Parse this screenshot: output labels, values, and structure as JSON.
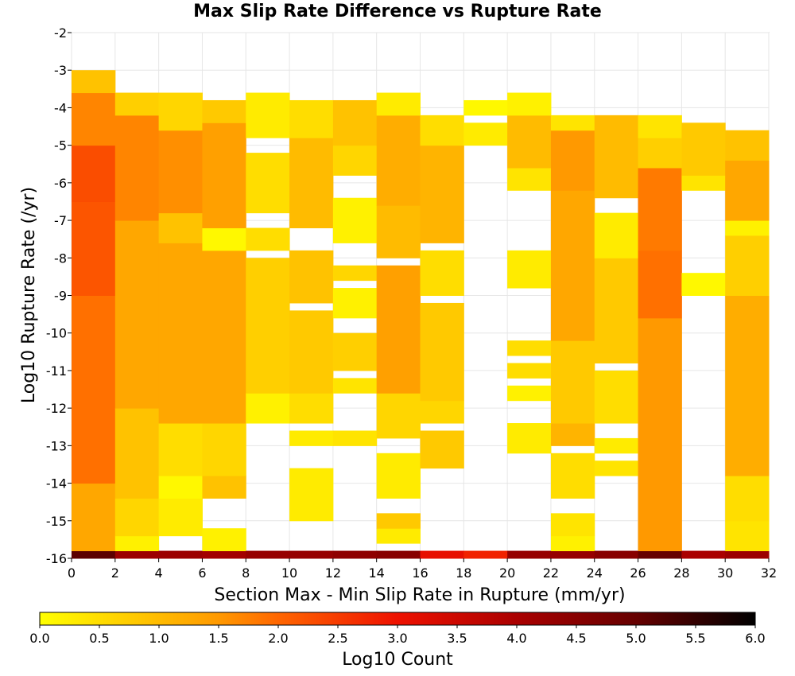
{
  "chart_data": {
    "type": "heatmap",
    "title": "Max Slip Rate Difference vs Rupture Rate",
    "xlabel": "Section Max - Min Slip Rate in Rupture (mm/yr)",
    "ylabel": "Log10 Rupture Rate (/yr)",
    "xlim": [
      0,
      32
    ],
    "ylim": [
      -16,
      -2
    ],
    "x_ticks": [
      "0",
      "2",
      "4",
      "6",
      "8",
      "10",
      "12",
      "14",
      "16",
      "18",
      "20",
      "22",
      "24",
      "26",
      "28",
      "30",
      "32"
    ],
    "y_ticks": [
      "-2",
      "-3",
      "-4",
      "-5",
      "-6",
      "-7",
      "-8",
      "-9",
      "-10",
      "-11",
      "-12",
      "-13",
      "-14",
      "-15",
      "-16"
    ],
    "x_bin_width": 2,
    "y_bin_width": 0.2,
    "grid": true,
    "colorbar": {
      "label": "Log10 Count",
      "min": 0.0,
      "max": 6.0,
      "ticks": [
        "0.0",
        "0.5",
        "1.0",
        "1.5",
        "2.0",
        "2.5",
        "3.0",
        "3.5",
        "4.0",
        "4.5",
        "5.0",
        "5.5",
        "6.0"
      ],
      "stops": [
        {
          "v": 0.0,
          "color": "#ffff00"
        },
        {
          "v": 0.5,
          "color": "#ffdd00"
        },
        {
          "v": 1.0,
          "color": "#ffbb00"
        },
        {
          "v": 1.5,
          "color": "#ff9900"
        },
        {
          "v": 2.0,
          "color": "#ff6600"
        },
        {
          "v": 3.0,
          "color": "#ee1100"
        },
        {
          "v": 4.0,
          "color": "#aa0000"
        },
        {
          "v": 5.0,
          "color": "#660000"
        },
        {
          "v": 6.0,
          "color": "#000000"
        }
      ]
    },
    "columns": [
      {
        "x": 1,
        "segments": [
          [
            -16.0,
            -15.8,
            5.1
          ],
          [
            -15.8,
            -14.0,
            1.3
          ],
          [
            -14.0,
            -9.0,
            1.9
          ],
          [
            -9.0,
            -6.5,
            2.2
          ],
          [
            -6.5,
            -5.0,
            2.3
          ],
          [
            -5.0,
            -3.6,
            1.7
          ],
          [
            -3.6,
            -3.0,
            0.9
          ]
        ]
      },
      {
        "x": 3,
        "segments": [
          [
            -16.0,
            -15.8,
            4.2
          ],
          [
            -15.8,
            -15.4,
            0.2
          ],
          [
            -15.4,
            -14.4,
            0.6
          ],
          [
            -14.4,
            -12.0,
            0.9
          ],
          [
            -12.0,
            -7.0,
            1.3
          ],
          [
            -7.0,
            -4.2,
            1.7
          ],
          [
            -4.2,
            -3.6,
            0.7
          ]
        ]
      },
      {
        "x": 5,
        "segments": [
          [
            -16.0,
            -15.8,
            4.2
          ],
          [
            -15.4,
            -14.4,
            0.3
          ],
          [
            -14.4,
            -13.8,
            0.1
          ],
          [
            -13.8,
            -12.4,
            0.5
          ],
          [
            -12.4,
            -7.6,
            1.3
          ],
          [
            -7.6,
            -6.8,
            0.9
          ],
          [
            -6.8,
            -4.6,
            1.6
          ],
          [
            -4.6,
            -3.6,
            0.6
          ]
        ]
      },
      {
        "x": 7,
        "segments": [
          [
            -16.0,
            -15.8,
            4.1
          ],
          [
            -15.8,
            -15.2,
            0.2
          ],
          [
            -14.4,
            -13.8,
            0.9
          ],
          [
            -13.8,
            -12.4,
            0.6
          ],
          [
            -12.4,
            -7.8,
            1.3
          ],
          [
            -7.8,
            -7.2,
            0.1
          ],
          [
            -7.2,
            -4.4,
            1.4
          ],
          [
            -4.4,
            -3.8,
            0.8
          ]
        ]
      },
      {
        "x": 9,
        "segments": [
          [
            -16.0,
            -15.8,
            4.3
          ],
          [
            -12.4,
            -11.6,
            0.2
          ],
          [
            -11.6,
            -8.0,
            0.7
          ],
          [
            -7.8,
            -7.2,
            0.5
          ],
          [
            -6.8,
            -5.2,
            0.5
          ],
          [
            -4.8,
            -3.6,
            0.3
          ]
        ]
      },
      {
        "x": 11,
        "segments": [
          [
            -16.0,
            -15.8,
            4.3
          ],
          [
            -15.0,
            -13.6,
            0.3
          ],
          [
            -13.0,
            -12.6,
            0.3
          ],
          [
            -12.4,
            -11.6,
            0.5
          ],
          [
            -11.6,
            -9.4,
            0.8
          ],
          [
            -9.2,
            -7.8,
            0.9
          ],
          [
            -7.2,
            -4.8,
            1.0
          ],
          [
            -4.8,
            -3.8,
            0.5
          ]
        ]
      },
      {
        "x": 13,
        "segments": [
          [
            -16.0,
            -15.8,
            4.4
          ],
          [
            -13.0,
            -12.6,
            0.4
          ],
          [
            -11.6,
            -11.2,
            0.4
          ],
          [
            -11.0,
            -10.0,
            0.7
          ],
          [
            -9.6,
            -8.8,
            0.2
          ],
          [
            -8.6,
            -8.2,
            0.6
          ],
          [
            -7.6,
            -6.4,
            0.2
          ],
          [
            -5.8,
            -5.0,
            0.6
          ],
          [
            -5.0,
            -3.8,
            0.9
          ]
        ]
      },
      {
        "x": 15,
        "segments": [
          [
            -16.0,
            -15.8,
            4.5
          ],
          [
            -15.6,
            -15.2,
            0.3
          ],
          [
            -15.2,
            -14.8,
            0.8
          ],
          [
            -14.4,
            -13.2,
            0.3
          ],
          [
            -12.8,
            -11.6,
            0.6
          ],
          [
            -11.6,
            -8.2,
            1.4
          ],
          [
            -8.0,
            -6.6,
            1.0
          ],
          [
            -6.6,
            -4.2,
            1.2
          ],
          [
            -4.2,
            -3.6,
            0.3
          ]
        ]
      },
      {
        "x": 17,
        "segments": [
          [
            -16.0,
            -15.8,
            3.1
          ],
          [
            -13.6,
            -12.6,
            0.8
          ],
          [
            -12.4,
            -11.8,
            0.6
          ],
          [
            -11.8,
            -9.2,
            0.8
          ],
          [
            -9.0,
            -7.8,
            0.5
          ],
          [
            -7.6,
            -5.0,
            1.1
          ],
          [
            -5.0,
            -4.2,
            0.5
          ]
        ]
      },
      {
        "x": 19,
        "segments": [
          [
            -16.0,
            -15.8,
            2.8
          ],
          [
            -5.0,
            -4.4,
            0.3
          ],
          [
            -4.2,
            -3.8,
            0.1
          ]
        ]
      },
      {
        "x": 21,
        "segments": [
          [
            -16.0,
            -15.8,
            4.3
          ],
          [
            -13.2,
            -12.4,
            0.3
          ],
          [
            -11.8,
            -11.4,
            0.2
          ],
          [
            -11.2,
            -10.8,
            0.5
          ],
          [
            -10.6,
            -10.2,
            0.5
          ],
          [
            -8.8,
            -7.8,
            0.3
          ],
          [
            -6.2,
            -5.6,
            0.4
          ],
          [
            -5.6,
            -4.2,
            1.0
          ],
          [
            -4.2,
            -3.6,
            0.2
          ]
        ]
      },
      {
        "x": 23,
        "segments": [
          [
            -16.0,
            -15.8,
            4.3
          ],
          [
            -15.8,
            -15.4,
            0.2
          ],
          [
            -15.4,
            -14.8,
            0.4
          ],
          [
            -14.4,
            -13.2,
            0.5
          ],
          [
            -13.0,
            -12.4,
            1.1
          ],
          [
            -12.4,
            -10.2,
            0.8
          ],
          [
            -10.2,
            -6.2,
            1.3
          ],
          [
            -6.2,
            -4.6,
            1.5
          ],
          [
            -4.6,
            -4.2,
            0.4
          ]
        ]
      },
      {
        "x": 25,
        "segments": [
          [
            -16.0,
            -15.8,
            4.5
          ],
          [
            -13.8,
            -13.4,
            0.4
          ],
          [
            -13.2,
            -12.8,
            0.3
          ],
          [
            -12.4,
            -11.0,
            0.5
          ],
          [
            -10.8,
            -8.0,
            0.8
          ],
          [
            -8.0,
            -6.8,
            0.3
          ],
          [
            -6.4,
            -4.2,
            1.0
          ]
        ]
      },
      {
        "x": 27,
        "segments": [
          [
            -16.0,
            -15.8,
            5.0
          ],
          [
            -15.8,
            -9.6,
            1.5
          ],
          [
            -9.6,
            -7.8,
            1.9
          ],
          [
            -7.8,
            -5.6,
            1.8
          ],
          [
            -5.6,
            -4.8,
            0.7
          ],
          [
            -4.8,
            -4.2,
            0.4
          ]
        ]
      },
      {
        "x": 29,
        "segments": [
          [
            -16.0,
            -15.8,
            4.0
          ],
          [
            -9.0,
            -8.4,
            0.1
          ],
          [
            -6.2,
            -5.8,
            0.4
          ],
          [
            -5.8,
            -4.4,
            0.8
          ]
        ]
      },
      {
        "x": 31,
        "segments": [
          [
            -16.0,
            -15.8,
            4.2
          ],
          [
            -15.8,
            -15.0,
            0.4
          ],
          [
            -15.0,
            -13.8,
            0.5
          ],
          [
            -13.8,
            -9.0,
            1.2
          ],
          [
            -9.0,
            -7.4,
            0.7
          ],
          [
            -7.4,
            -7.0,
            0.2
          ],
          [
            -7.0,
            -5.4,
            1.3
          ],
          [
            -5.4,
            -4.6,
            0.9
          ]
        ]
      }
    ]
  }
}
